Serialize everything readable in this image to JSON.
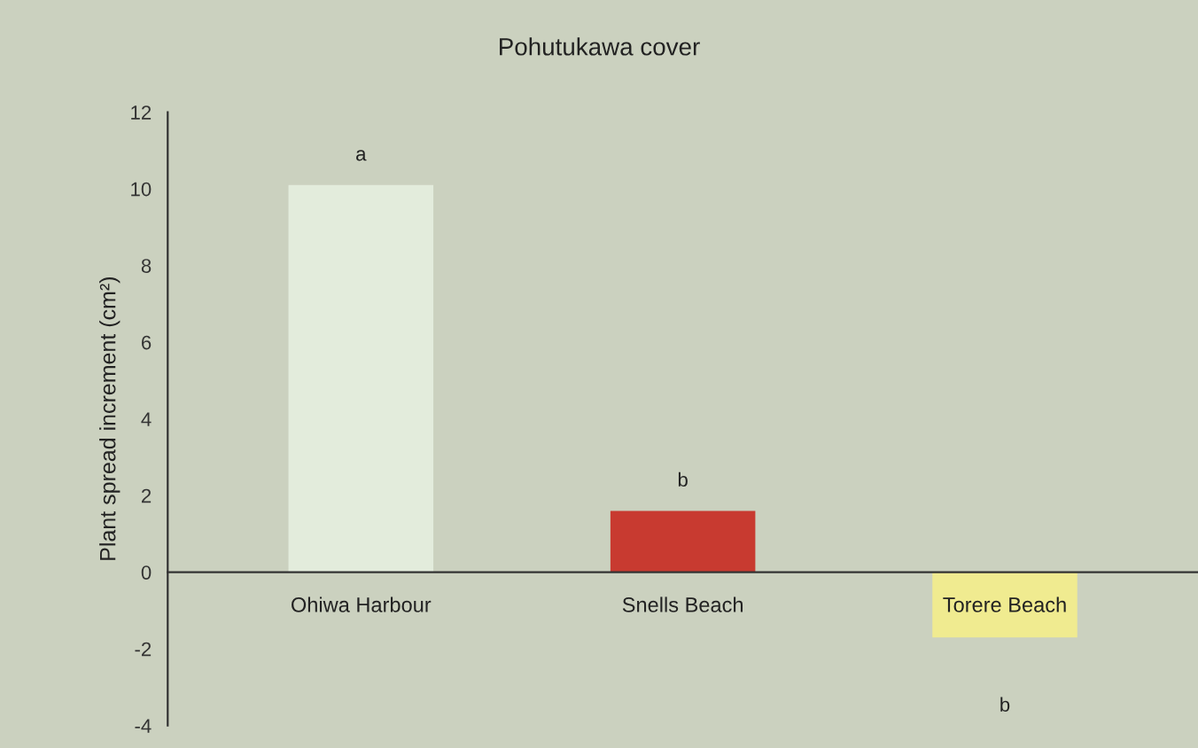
{
  "chart_data": {
    "type": "bar",
    "title": "Pohutukawa cover",
    "ylabel": "Plant spread increment (cm²)",
    "categories": [
      "Ohiwa Harbour",
      "Snells Beach",
      "Torere Beach"
    ],
    "values": [
      10.1,
      1.6,
      -1.7
    ],
    "colors": [
      "#e3ecdc",
      "#c83a30",
      "#f0eb90"
    ],
    "ylim": [
      -4,
      12
    ],
    "yticks": [
      {
        "value": -4,
        "label": "-4"
      },
      {
        "value": -2,
        "label": "-2"
      },
      0,
      2,
      4,
      6,
      8,
      10,
      12
    ],
    "annotations": [
      "a",
      "b",
      "b"
    ],
    "grid": false,
    "legend": false
  }
}
